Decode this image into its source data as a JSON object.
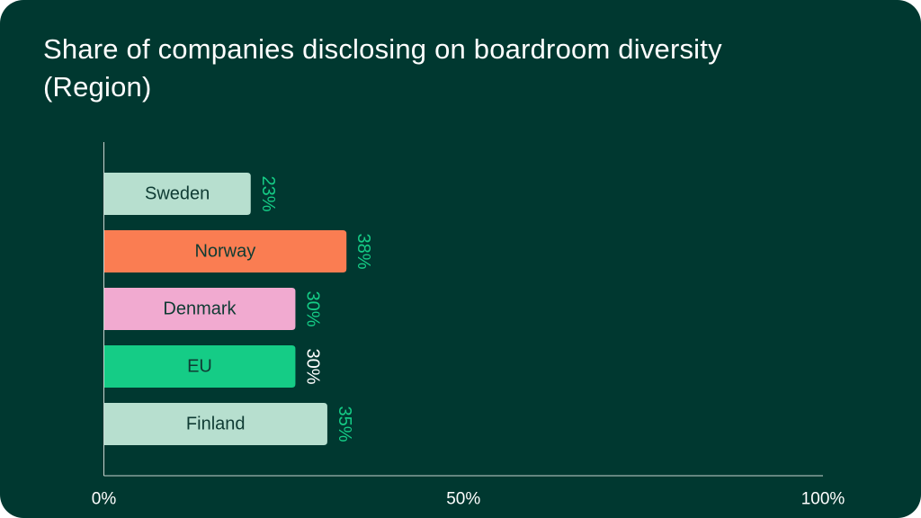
{
  "title": "Share of companies disclosing on boardroom diversity (Region)",
  "chart_data": {
    "type": "bar",
    "orientation": "horizontal",
    "title": "Share of companies disclosing on boardroom diversity (Region)",
    "categories": [
      "Sweden",
      "Norway",
      "Denmark",
      "EU",
      "Finland"
    ],
    "values": [
      23,
      38,
      30,
      30,
      35
    ],
    "value_labels": [
      "23%",
      "38%",
      "30%",
      "30%",
      "35%"
    ],
    "bar_colors": [
      "#b7dfcf",
      "#fa7d52",
      "#f1aad0",
      "#15cc86",
      "#b7dfcf"
    ],
    "label_colors": [
      "#15cc86",
      "#15cc86",
      "#15cc86",
      "#ffffff",
      "#15cc86"
    ],
    "xlim": [
      0,
      100
    ],
    "xticks": [
      0,
      50,
      100
    ],
    "xtick_labels": [
      "0%",
      "50%",
      "100%"
    ],
    "xlabel": "",
    "ylabel": "",
    "grid": false,
    "legend": "none"
  },
  "colors": {
    "background": "#003830",
    "title_text": "#ffffff",
    "axis": "#c9d3cf",
    "tick_text": "#ffffff",
    "bar_text": "#0f3b33"
  }
}
